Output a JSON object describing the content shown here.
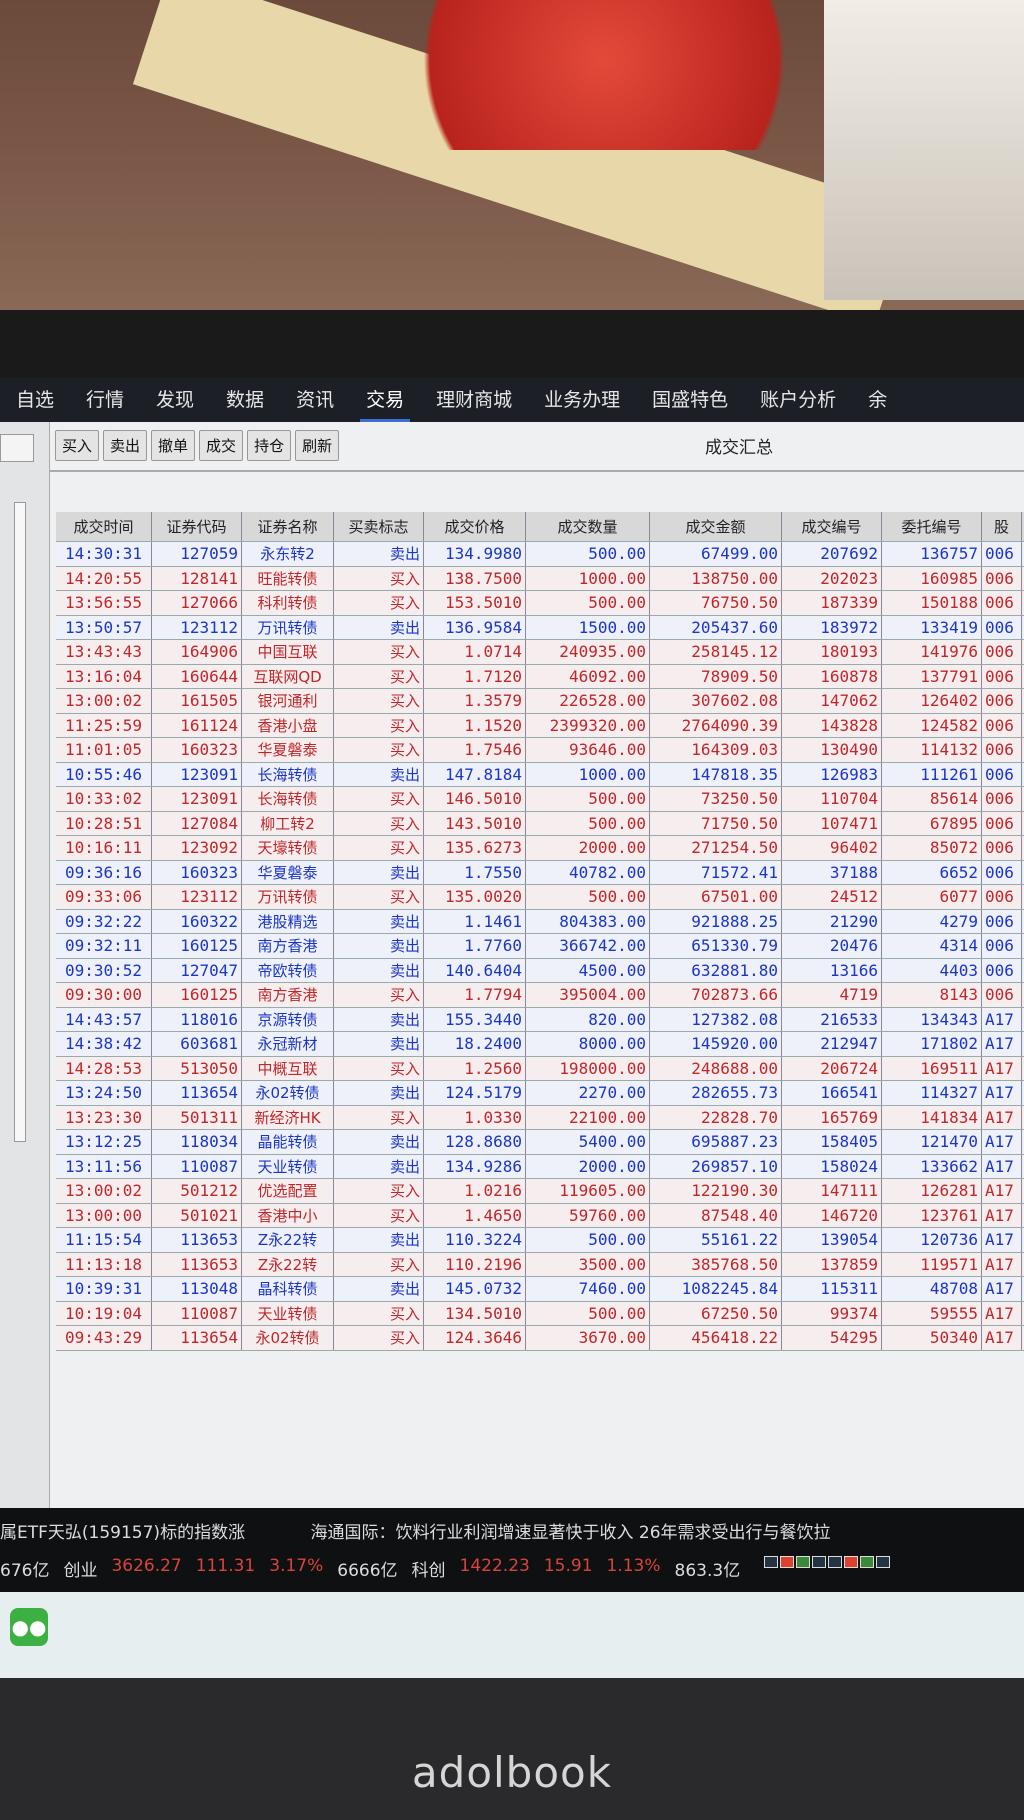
{
  "nav": {
    "items": [
      "自选",
      "行情",
      "发现",
      "数据",
      "资讯",
      "交易",
      "理财商城",
      "业务办理",
      "国盛特色",
      "账户分析",
      "余"
    ],
    "active": 5
  },
  "toolbar": {
    "buttons": [
      "买入",
      "卖出",
      "撤单",
      "成交",
      "持仓",
      "刷新"
    ],
    "title": "成交汇总"
  },
  "table": {
    "headers": [
      "成交时间",
      "证券代码",
      "证券名称",
      "买卖标志",
      "成交价格",
      "成交数量",
      "成交金额",
      "成交编号",
      "委托编号",
      "股"
    ],
    "rows": [
      [
        "14:30:31",
        "127059",
        "永东转2",
        "卖出",
        "134.9980",
        "500.00",
        "67499.00",
        "207692",
        "136757",
        "006"
      ],
      [
        "14:20:55",
        "128141",
        "旺能转债",
        "买入",
        "138.7500",
        "1000.00",
        "138750.00",
        "202023",
        "160985",
        "006"
      ],
      [
        "13:56:55",
        "127066",
        "科利转债",
        "买入",
        "153.5010",
        "500.00",
        "76750.50",
        "187339",
        "150188",
        "006"
      ],
      [
        "13:50:57",
        "123112",
        "万讯转债",
        "卖出",
        "136.9584",
        "1500.00",
        "205437.60",
        "183972",
        "133419",
        "006"
      ],
      [
        "13:43:43",
        "164906",
        "中国互联",
        "买入",
        "1.0714",
        "240935.00",
        "258145.12",
        "180193",
        "141976",
        "006"
      ],
      [
        "13:16:04",
        "160644",
        "互联网QD",
        "买入",
        "1.7120",
        "46092.00",
        "78909.50",
        "160878",
        "137791",
        "006"
      ],
      [
        "13:00:02",
        "161505",
        "银河通利",
        "买入",
        "1.3579",
        "226528.00",
        "307602.08",
        "147062",
        "126402",
        "006"
      ],
      [
        "11:25:59",
        "161124",
        "香港小盘",
        "买入",
        "1.1520",
        "2399320.00",
        "2764090.39",
        "143828",
        "124582",
        "006"
      ],
      [
        "11:01:05",
        "160323",
        "华夏磐泰",
        "买入",
        "1.7546",
        "93646.00",
        "164309.03",
        "130490",
        "114132",
        "006"
      ],
      [
        "10:55:46",
        "123091",
        "长海转债",
        "卖出",
        "147.8184",
        "1000.00",
        "147818.35",
        "126983",
        "111261",
        "006"
      ],
      [
        "10:33:02",
        "123091",
        "长海转债",
        "买入",
        "146.5010",
        "500.00",
        "73250.50",
        "110704",
        "85614",
        "006"
      ],
      [
        "10:28:51",
        "127084",
        "柳工转2",
        "买入",
        "143.5010",
        "500.00",
        "71750.50",
        "107471",
        "67895",
        "006"
      ],
      [
        "10:16:11",
        "123092",
        "天壕转债",
        "买入",
        "135.6273",
        "2000.00",
        "271254.50",
        "96402",
        "85072",
        "006"
      ],
      [
        "09:36:16",
        "160323",
        "华夏磐泰",
        "卖出",
        "1.7550",
        "40782.00",
        "71572.41",
        "37188",
        "6652",
        "006"
      ],
      [
        "09:33:06",
        "123112",
        "万讯转债",
        "买入",
        "135.0020",
        "500.00",
        "67501.00",
        "24512",
        "6077",
        "006"
      ],
      [
        "09:32:22",
        "160322",
        "港股精选",
        "卖出",
        "1.1461",
        "804383.00",
        "921888.25",
        "21290",
        "4279",
        "006"
      ],
      [
        "09:32:11",
        "160125",
        "南方香港",
        "卖出",
        "1.7760",
        "366742.00",
        "651330.79",
        "20476",
        "4314",
        "006"
      ],
      [
        "09:30:52",
        "127047",
        "帝欧转债",
        "卖出",
        "140.6404",
        "4500.00",
        "632881.80",
        "13166",
        "4403",
        "006"
      ],
      [
        "09:30:00",
        "160125",
        "南方香港",
        "买入",
        "1.7794",
        "395004.00",
        "702873.66",
        "4719",
        "8143",
        "006"
      ],
      [
        "14:43:57",
        "118016",
        "京源转债",
        "卖出",
        "155.3440",
        "820.00",
        "127382.08",
        "216533",
        "134343",
        "A17"
      ],
      [
        "14:38:42",
        "603681",
        "永冠新材",
        "卖出",
        "18.2400",
        "8000.00",
        "145920.00",
        "212947",
        "171802",
        "A17"
      ],
      [
        "14:28:53",
        "513050",
        "中概互联",
        "买入",
        "1.2560",
        "198000.00",
        "248688.00",
        "206724",
        "169511",
        "A17"
      ],
      [
        "13:24:50",
        "113654",
        "永02转债",
        "卖出",
        "124.5179",
        "2270.00",
        "282655.73",
        "166541",
        "114327",
        "A17"
      ],
      [
        "13:23:30",
        "501311",
        "新经济HK",
        "买入",
        "1.0330",
        "22100.00",
        "22828.70",
        "165769",
        "141834",
        "A17"
      ],
      [
        "13:12:25",
        "118034",
        "晶能转债",
        "卖出",
        "128.8680",
        "5400.00",
        "695887.23",
        "158405",
        "121470",
        "A17"
      ],
      [
        "13:11:56",
        "110087",
        "天业转债",
        "卖出",
        "134.9286",
        "2000.00",
        "269857.10",
        "158024",
        "133662",
        "A17"
      ],
      [
        "13:00:02",
        "501212",
        "优选配置",
        "买入",
        "1.0216",
        "119605.00",
        "122190.30",
        "147111",
        "126281",
        "A17"
      ],
      [
        "13:00:00",
        "501021",
        "香港中小",
        "买入",
        "1.4650",
        "59760.00",
        "87548.40",
        "146720",
        "123761",
        "A17"
      ],
      [
        "11:15:54",
        "113653",
        "Z永22转",
        "卖出",
        "110.3224",
        "500.00",
        "55161.22",
        "139054",
        "120736",
        "A17"
      ],
      [
        "11:13:18",
        "113653",
        "Z永22转",
        "买入",
        "110.2196",
        "3500.00",
        "385768.50",
        "137859",
        "119571",
        "A17"
      ],
      [
        "10:39:31",
        "113048",
        "晶科转债",
        "卖出",
        "145.0732",
        "7460.00",
        "1082245.84",
        "115311",
        "48708",
        "A17"
      ],
      [
        "10:19:04",
        "110087",
        "天业转债",
        "买入",
        "134.5010",
        "500.00",
        "67250.50",
        "99374",
        "59555",
        "A17"
      ],
      [
        "09:43:29",
        "113654",
        "永02转债",
        "买入",
        "124.3646",
        "3670.00",
        "456418.22",
        "54295",
        "50340",
        "A17"
      ]
    ]
  },
  "ticker": {
    "news": [
      "属ETF天弘(159157)标的指数涨",
      "海通国际：饮料行业利润增速显著快于收入 26年需求受出行与餐饮拉"
    ],
    "index": {
      "prev_volume": "676亿",
      "chinext_label": "创业",
      "chinext_value": "3626.27",
      "chinext_change": "111.31",
      "chinext_pct": "3.17%",
      "chinext_volume": "6666亿",
      "star_label": "科创",
      "star_value": "1422.23",
      "star_change": "15.91",
      "star_pct": "1.13%",
      "star_volume": "863.3亿"
    }
  },
  "taskbar": {
    "apps": [
      "wechat-icon"
    ]
  },
  "laptop": {
    "brand": "adolbook"
  },
  "colors": {
    "buy": "#c0262a",
    "sell": "#1b36c4",
    "nav_bg": "#1c1f26",
    "accent": "#3b6fd8"
  }
}
